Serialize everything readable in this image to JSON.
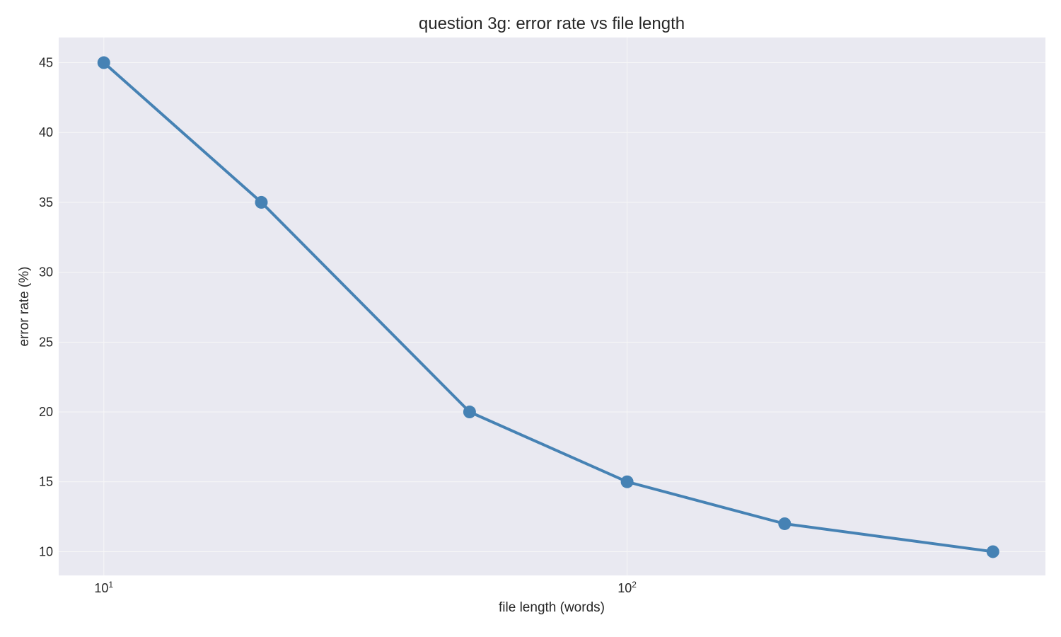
{
  "chart_data": {
    "type": "line",
    "title": "question 3g: error rate vs file length",
    "xlabel": "file length (words)",
    "ylabel": "error rate (%)",
    "xscale": "log",
    "xlim": [
      8.2,
      630
    ],
    "ylim": [
      8.3,
      46.8
    ],
    "xticks": [
      {
        "value": 10,
        "base": "10",
        "exp": "1"
      },
      {
        "value": 100,
        "base": "10",
        "exp": "2"
      }
    ],
    "yticks": [
      10,
      15,
      20,
      25,
      30,
      35,
      40,
      45
    ],
    "grid": true,
    "legend": "none",
    "colors": {
      "series": "#4682b4",
      "background": "#e9e9f1",
      "grid": "#f7f7f7"
    },
    "series": [
      {
        "x": [
          10,
          20,
          50,
          100,
          200,
          500
        ],
        "y": [
          45,
          35,
          20,
          15,
          12,
          10
        ]
      }
    ]
  }
}
